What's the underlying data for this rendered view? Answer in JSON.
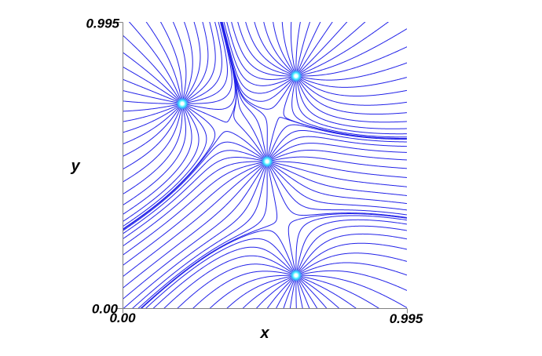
{
  "figure": {
    "background": "#FFFFFF"
  },
  "chart_data": {
    "type": "line",
    "subtype": "vector-field-streamlines",
    "title": "",
    "xlabel": "x",
    "ylabel": "y",
    "xlim": [
      0,
      0.995
    ],
    "ylim": [
      0,
      0.995
    ],
    "x_tick_labels": {
      "min": "0.00",
      "max": "0.995"
    },
    "y_tick_labels": {
      "min": "0.00",
      "max": "0.995"
    },
    "grid": false,
    "legend": false,
    "axis_color": "#808080",
    "line_color": "#2222E8",
    "line_width": 1,
    "lines_per_source": 32,
    "seed_radius": 0.005,
    "sources": [
      {
        "x": 0.209,
        "y": 0.711,
        "strength": 1
      },
      {
        "x": 0.607,
        "y": 0.807,
        "strength": 1
      },
      {
        "x": 0.506,
        "y": 0.51,
        "strength": 1
      },
      {
        "x": 0.607,
        "y": 0.114,
        "strength": 1
      }
    ],
    "source_marker": {
      "core_color": "#FFFFFF",
      "glow_color": "#3FE9FF",
      "core_radius": 2,
      "glow_radius": 8
    }
  }
}
